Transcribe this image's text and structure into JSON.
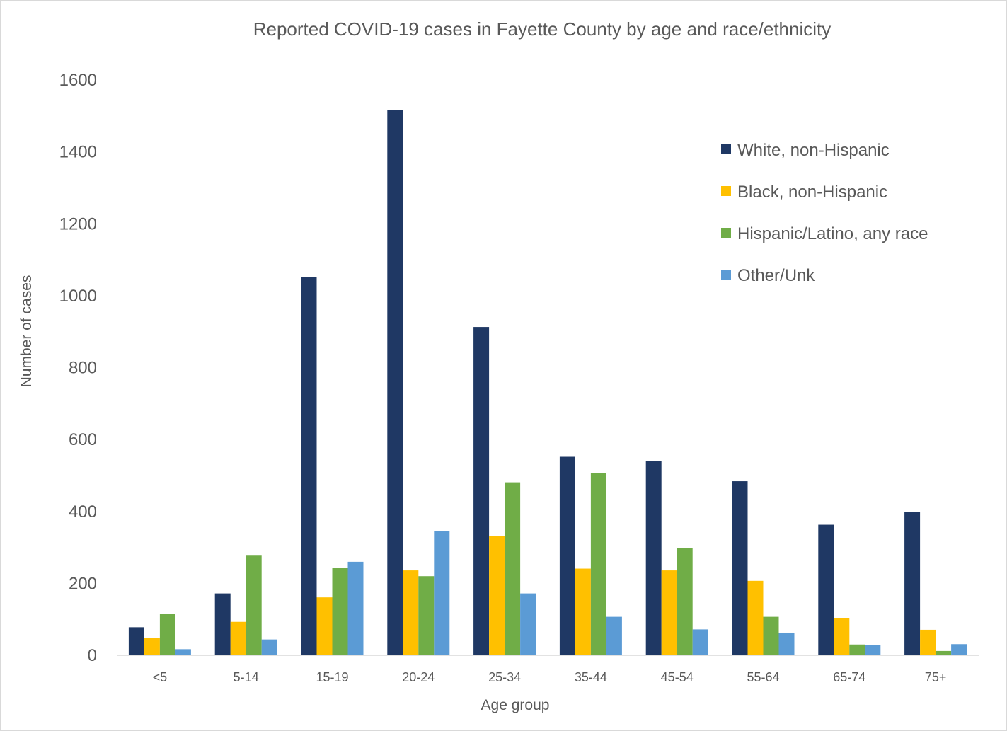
{
  "chart_data": {
    "type": "bar",
    "title": "Reported COVID-19 cases in Fayette County by age and race/ethnicity",
    "xlabel": "Age group",
    "ylabel": "Number of cases",
    "ylim": [
      0,
      1600
    ],
    "yticks": [
      0,
      200,
      400,
      600,
      800,
      1000,
      1200,
      1400,
      1600
    ],
    "grid": false,
    "legend_position": "top-right",
    "categories": [
      "<5",
      "5-14",
      "15-19",
      "20-24",
      "25-34",
      "35-44",
      "45-54",
      "55-64",
      "65-74",
      "75+"
    ],
    "series": [
      {
        "name": "White, non-Hispanic",
        "color": "#1f3864",
        "values": [
          78,
          172,
          1052,
          1517,
          913,
          552,
          541,
          484,
          363,
          399
        ]
      },
      {
        "name": "Black, non-Hispanic",
        "color": "#ffc000",
        "values": [
          48,
          93,
          161,
          236,
          331,
          241,
          236,
          207,
          104,
          71
        ]
      },
      {
        "name": "Hispanic/Latino, any race",
        "color": "#70ad47",
        "values": [
          115,
          279,
          243,
          220,
          481,
          507,
          298,
          107,
          30,
          12
        ]
      },
      {
        "name": "Other/Unk",
        "color": "#5b9bd5",
        "values": [
          17,
          44,
          260,
          345,
          172,
          107,
          72,
          63,
          28,
          31
        ]
      }
    ]
  }
}
